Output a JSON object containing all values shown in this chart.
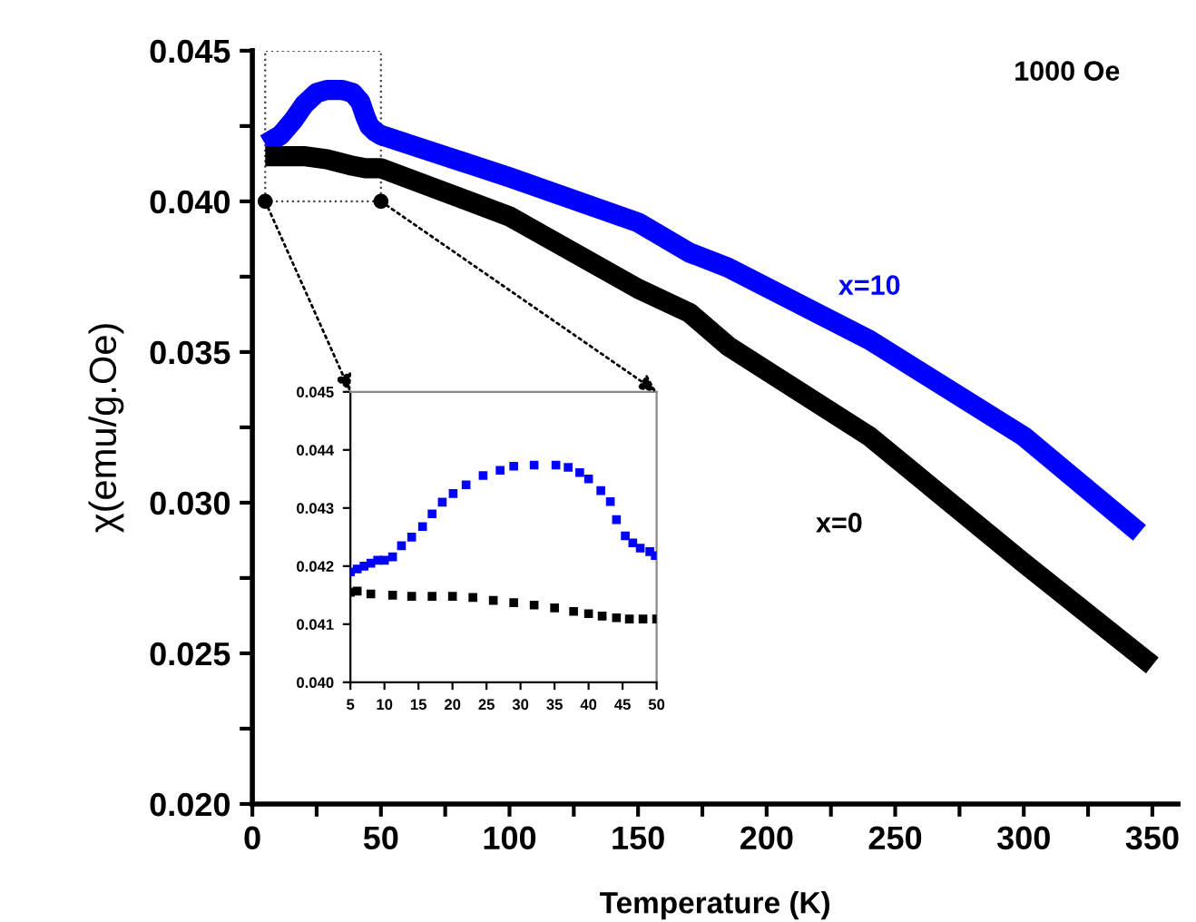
{
  "chart_data": [
    {
      "type": "line",
      "xlabel": "Temperature (K)",
      "ylabel": "χ(emu/g.Oe)",
      "annotations": [
        "1000 Oe"
      ],
      "xlim": [
        0,
        360
      ],
      "ylim": [
        0.02,
        0.045
      ],
      "xticks": [
        0,
        {
          "value": 25,
          "label": null
        },
        50,
        {
          "value": 75,
          "label": null
        },
        100,
        {
          "value": 125,
          "label": null
        },
        150,
        {
          "value": 175,
          "label": null
        },
        200,
        {
          "value": 225,
          "label": null
        },
        250,
        {
          "value": 275,
          "label": null
        },
        300,
        {
          "value": 325,
          "label": null
        },
        350
      ],
      "yticks": [
        {
          "value": 0.02,
          "label": "0.020"
        },
        {
          "value": 0.0225,
          "label": null
        },
        {
          "value": 0.025,
          "label": "0.025"
        },
        {
          "value": 0.0275,
          "label": null
        },
        {
          "value": 0.03,
          "label": "0.030"
        },
        {
          "value": 0.0325,
          "label": null
        },
        {
          "value": 0.035,
          "label": "0.035"
        },
        {
          "value": 0.0375,
          "label": null
        },
        {
          "value": 0.04,
          "label": "0.040"
        },
        {
          "value": 0.0425,
          "label": null
        },
        {
          "value": 0.045,
          "label": "0.045"
        }
      ],
      "grid": false,
      "legend": false,
      "marker": "none",
      "line_style": "solid",
      "series": [
        {
          "name": "x=10",
          "color": "#0000ff",
          "x": [
            5,
            11,
            16,
            20,
            25,
            29,
            35,
            39,
            42,
            44,
            45.5,
            48,
            50,
            100,
            150,
            170,
            185,
            240,
            300,
            345
          ],
          "values": [
            0.0419,
            0.0422,
            0.0427,
            0.0432,
            0.0436,
            0.0437,
            0.0437,
            0.0436,
            0.0433,
            0.0428,
            0.0425,
            0.0423,
            0.0422,
            0.0408,
            0.0393,
            0.0383,
            0.0378,
            0.0354,
            0.0322,
            0.029
          ]
        },
        {
          "name": "x=0",
          "color": "#000000",
          "x": [
            5,
            11,
            20,
            29,
            38,
            44,
            50,
            100,
            150,
            170,
            185,
            240,
            300,
            350
          ],
          "values": [
            0.0415,
            0.0415,
            0.0415,
            0.0414,
            0.0412,
            0.0411,
            0.0411,
            0.0395,
            0.0371,
            0.0363,
            0.0352,
            0.0322,
            0.028,
            0.0246
          ]
        }
      ]
    },
    {
      "type": "scatter",
      "xlim": [
        5,
        50
      ],
      "ylim": [
        0.04,
        0.045
      ],
      "xticks": [
        5,
        10,
        15,
        20,
        25,
        30,
        35,
        40,
        45,
        50
      ],
      "yticks": [
        {
          "value": 0.04,
          "label": "0.040"
        },
        {
          "value": 0.041,
          "label": "0.041"
        },
        {
          "value": 0.042,
          "label": "0.042"
        },
        {
          "value": 0.043,
          "label": "0.043"
        },
        {
          "value": 0.044,
          "label": "0.044"
        },
        {
          "value": 0.045,
          "label": "0.045"
        }
      ],
      "grid": false,
      "legend": false,
      "marker": "square",
      "series": [
        {
          "color": "#0000ff",
          "x": [
            5,
            6,
            7,
            8,
            9,
            10,
            11.2,
            12.5,
            14,
            15.6,
            17,
            18.5,
            20.1,
            22,
            24.5,
            27,
            29,
            32,
            35.2,
            37,
            38.7,
            40,
            41.8,
            43.2,
            44.1,
            45.4,
            46.5,
            47.6,
            49,
            49.8
          ],
          "values": [
            0.0419,
            0.04195,
            0.042,
            0.04205,
            0.0421,
            0.0421,
            0.04216,
            0.04235,
            0.0425,
            0.04268,
            0.0429,
            0.0431,
            0.04325,
            0.0434,
            0.04356,
            0.04365,
            0.04372,
            0.04374,
            0.04374,
            0.0437,
            0.04361,
            0.0435,
            0.0433,
            0.04311,
            0.0428,
            0.04252,
            0.0424,
            0.04231,
            0.04225,
            0.04218
          ]
        },
        {
          "color": "#000000",
          "x": [
            5,
            6,
            8,
            11.2,
            14,
            17,
            20,
            23,
            26,
            29,
            32,
            35,
            37.8,
            40,
            42,
            44.1,
            46,
            48,
            50
          ],
          "values": [
            0.04155,
            0.04157,
            0.04152,
            0.0415,
            0.04148,
            0.04148,
            0.04148,
            0.04146,
            0.04141,
            0.04137,
            0.04133,
            0.04128,
            0.04122,
            0.04118,
            0.04114,
            0.04111,
            0.04109,
            0.04109,
            0.04109
          ]
        }
      ]
    }
  ]
}
